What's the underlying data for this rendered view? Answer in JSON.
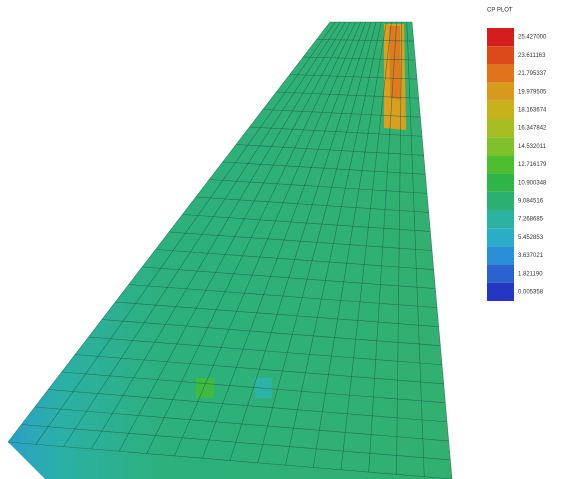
{
  "legend": {
    "title": "CP PLOT",
    "entries": [
      {
        "label": "25.427000",
        "color": "#d41e1e"
      },
      {
        "label": "23.611163",
        "color": "#dc4a1c"
      },
      {
        "label": "21.795337",
        "color": "#e0731c"
      },
      {
        "label": "19.979505",
        "color": "#d89a1c"
      },
      {
        "label": "18.163674",
        "color": "#c7b21e"
      },
      {
        "label": "16.347842",
        "color": "#a8bd22"
      },
      {
        "label": "14.532011",
        "color": "#80c02a"
      },
      {
        "label": "12.716179",
        "color": "#4fbd30"
      },
      {
        "label": "10.900348",
        "color": "#2fb44a"
      },
      {
        "label": "9.084516",
        "color": "#2bb072"
      },
      {
        "label": "7.268685",
        "color": "#2cb3a0"
      },
      {
        "label": "5.452853",
        "color": "#2aaec8"
      },
      {
        "label": "3.637021",
        "color": "#2a8fd6"
      },
      {
        "label": "1.821190",
        "color": "#2a62d0"
      },
      {
        "label": "0.005358",
        "color": "#2436c4"
      }
    ]
  }
}
